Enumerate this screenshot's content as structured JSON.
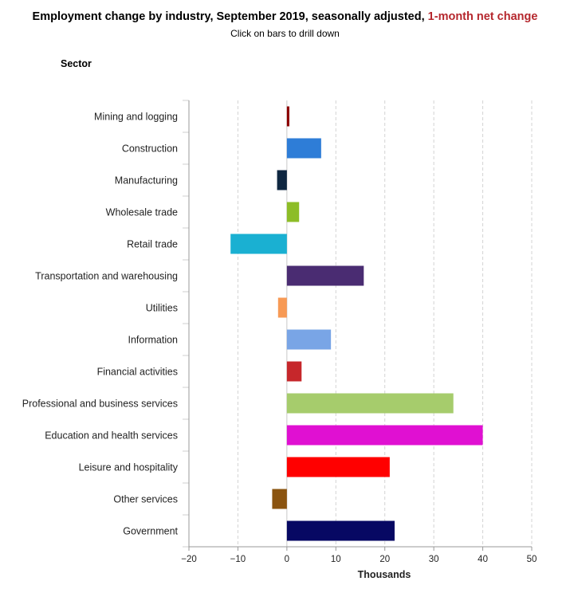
{
  "header": {
    "title_main": "Employment change by industry, September 2019, seasonally adjusted, ",
    "title_highlight": "1-month net change",
    "subtitle": "Click on bars to drill down"
  },
  "chart_data": {
    "type": "bar",
    "orientation": "horizontal",
    "category_axis_title": "Sector",
    "xlabel": "Thousands",
    "xlim": [
      -20,
      50
    ],
    "xticks": [
      -20,
      -10,
      0,
      10,
      20,
      30,
      40,
      50
    ],
    "grid": "vertical dashed",
    "categories": [
      "Mining and logging",
      "Construction",
      "Manufacturing",
      "Wholesale trade",
      "Retail trade",
      "Transportation and warehousing",
      "Utilities",
      "Information",
      "Financial activities",
      "Professional and business services",
      "Education and health services",
      "Leisure and hospitality",
      "Other services",
      "Government"
    ],
    "values": [
      0.5,
      7,
      -2,
      2.5,
      -11.5,
      15.7,
      -1.8,
      9,
      3,
      34,
      40,
      21,
      -3,
      22
    ],
    "colors": [
      "#8b0000",
      "#2e7dd7",
      "#0f2741",
      "#8dbd27",
      "#1ab0d2",
      "#4a2c72",
      "#f79a55",
      "#79a5e6",
      "#c6272b",
      "#a6cc6c",
      "#e010d2",
      "#ff0000",
      "#8b5410",
      "#070863"
    ]
  }
}
